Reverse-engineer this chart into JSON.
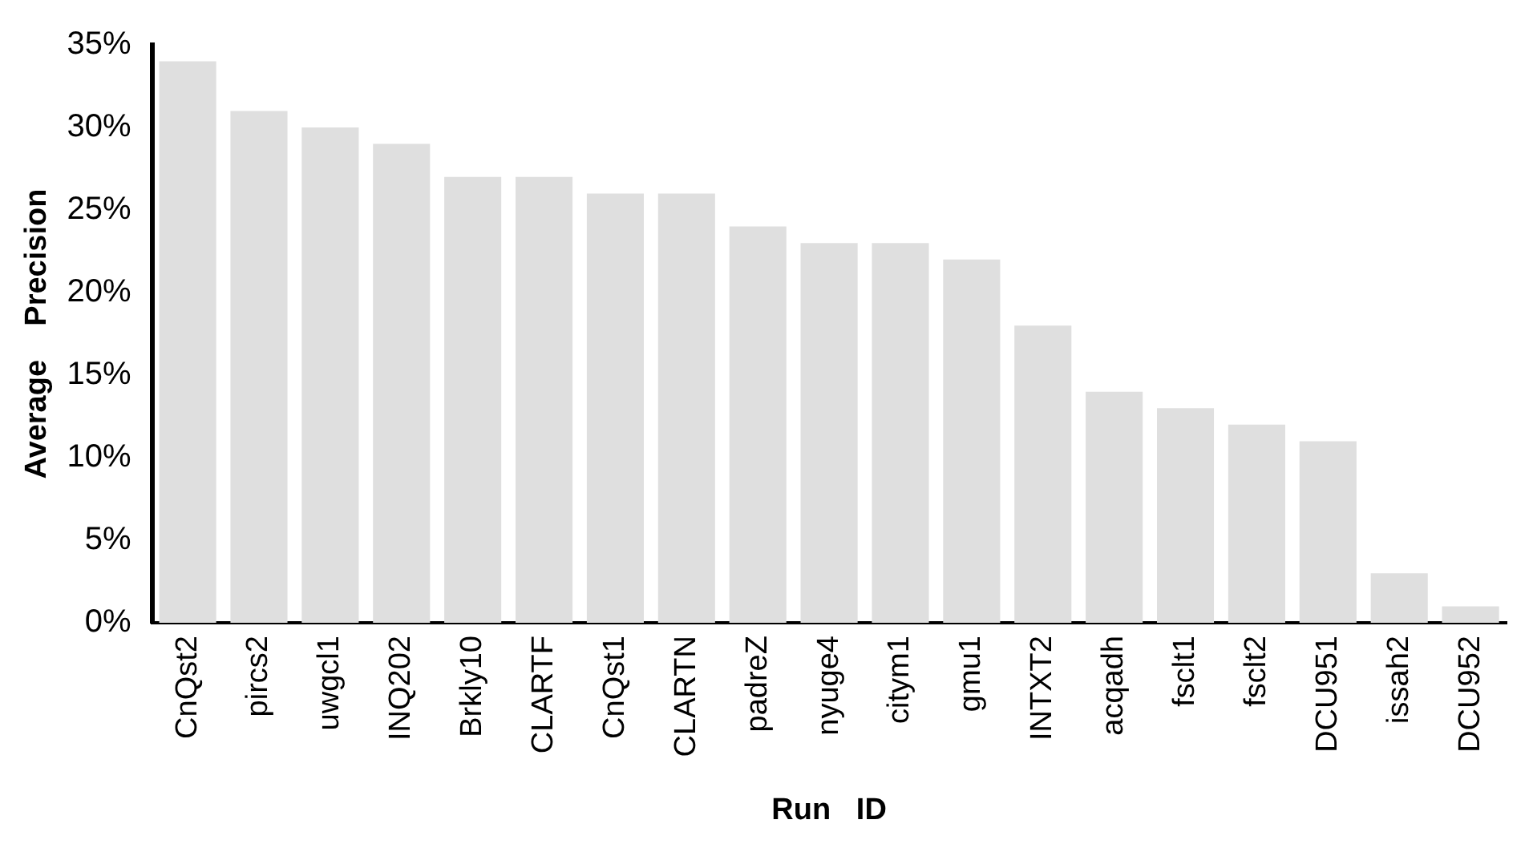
{
  "chart_data": {
    "type": "bar",
    "xlabel": "Run   ID",
    "ylabel": "Average    Precision",
    "categories": [
      "CnQst2",
      "pircs2",
      "uwgcl1",
      "INQ202",
      "Brkly10",
      "CLARTF",
      "CnQst1",
      "CLARTN",
      "padreZ",
      "nyuge4",
      "citym1",
      "gmu1",
      "INTXT2",
      "acqadh",
      "fsclt1",
      "fsclt2",
      "DCU951",
      "issah2",
      "DCU952"
    ],
    "values": [
      34,
      31,
      30,
      29,
      27,
      27,
      26,
      26,
      24,
      23,
      23,
      22,
      18,
      14,
      13,
      12,
      11,
      3,
      1
    ],
    "color": "#dfdfdf",
    "ylim": [
      0,
      35
    ],
    "yticks": [
      {
        "value": 0,
        "label": "0%"
      },
      {
        "value": 5,
        "label": "5%"
      },
      {
        "value": 10,
        "label": "10%"
      },
      {
        "value": 15,
        "label": "15%"
      },
      {
        "value": 20,
        "label": "20%"
      },
      {
        "value": 25,
        "label": "25%"
      },
      {
        "value": 30,
        "label": "30%"
      },
      {
        "value": 35,
        "label": "35%"
      }
    ],
    "grid": false,
    "legend": false
  }
}
